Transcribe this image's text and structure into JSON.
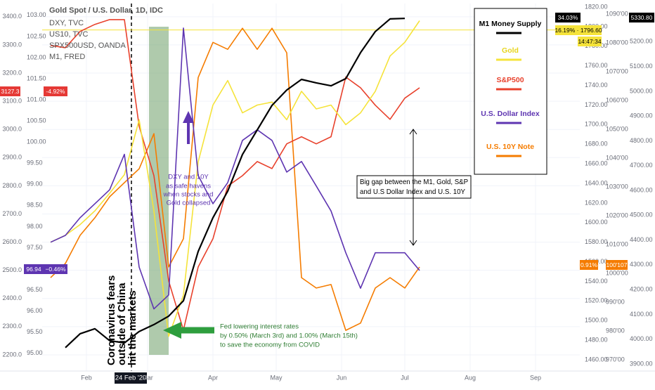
{
  "chart_data": {
    "type": "line",
    "header_legend": [
      "Gold Spot / U.S. Dollar, 1D, IDC",
      "DXY, TVC",
      "US10, TVC",
      "SPX500USD, OANDA",
      "M1, FRED"
    ],
    "x": [
      14,
      21,
      28,
      35,
      42,
      49,
      56,
      63,
      70,
      77,
      84,
      91,
      98,
      105,
      112,
      119,
      126,
      133,
      140,
      147,
      154,
      161,
      168,
      175,
      182,
      189
    ],
    "xlim": [
      10,
      265
    ],
    "xticks": [
      {
        "value": 31,
        "label": "Feb"
      },
      {
        "value": 60,
        "label": "Mar"
      },
      {
        "value": 91,
        "label": "Apr"
      },
      {
        "value": 121,
        "label": "May"
      },
      {
        "value": 152,
        "label": "Jun"
      },
      {
        "value": 182,
        "label": "Jul"
      },
      {
        "value": 213,
        "label": "Aug"
      },
      {
        "value": 244,
        "label": "Sep"
      }
    ],
    "grid": true,
    "axes": {
      "spx": {
        "lim": [
          2150,
          3447
        ],
        "ticks": [
          {
            "value": 2200,
            "label": "2200.0"
          },
          {
            "value": 2300,
            "label": "2300.0"
          },
          {
            "value": 2400,
            "label": "2400.0"
          },
          {
            "value": 2500,
            "label": "2500.0"
          },
          {
            "value": 2600,
            "label": "2600.0"
          },
          {
            "value": 2700,
            "label": "2700.0"
          },
          {
            "value": 2800,
            "label": "2800.0"
          },
          {
            "value": 2900,
            "label": "2900.0"
          },
          {
            "value": 3000,
            "label": "3000.0"
          },
          {
            "value": 3100,
            "label": "3100.0"
          },
          {
            "value": 3200,
            "label": "3200.0"
          },
          {
            "value": 3300,
            "label": "3300.0"
          },
          {
            "value": 3400,
            "label": "3400.0"
          }
        ]
      },
      "dxy": {
        "lim": [
          94.63,
          103.28
        ],
        "ticks": [
          {
            "value": 95,
            "label": "95.00"
          },
          {
            "value": 95.5,
            "label": "95.50"
          },
          {
            "value": 96,
            "label": "96.00"
          },
          {
            "value": 96.5,
            "label": "96.50"
          },
          {
            "value": 97,
            "label": "97.00"
          },
          {
            "value": 97.5,
            "label": "97.50"
          },
          {
            "value": 98,
            "label": "98.00"
          },
          {
            "value": 98.5,
            "label": "98.50"
          },
          {
            "value": 99,
            "label": "99.00"
          },
          {
            "value": 99.5,
            "label": "99.50"
          },
          {
            "value": 100,
            "label": "100.00"
          },
          {
            "value": 100.5,
            "label": "100.50"
          },
          {
            "value": 101,
            "label": "101.00"
          },
          {
            "value": 101.5,
            "label": "101.50"
          },
          {
            "value": 102,
            "label": "102.00"
          },
          {
            "value": 102.5,
            "label": "102.50"
          },
          {
            "value": 103,
            "label": "103.00"
          }
        ]
      },
      "gold": {
        "lim": [
          1450.7,
          1823.6
        ],
        "ticks": [
          {
            "value": 1460,
            "label": "1460.00"
          },
          {
            "value": 1480,
            "label": "1480.00"
          },
          {
            "value": 1500,
            "label": "1500.00"
          },
          {
            "value": 1520,
            "label": "1520.00"
          },
          {
            "value": 1540,
            "label": "1540.00"
          },
          {
            "value": 1560,
            "label": "1560.00"
          },
          {
            "value": 1580,
            "label": "1580.00"
          },
          {
            "value": 1600,
            "label": "1600.00"
          },
          {
            "value": 1620,
            "label": "1620.00"
          },
          {
            "value": 1640,
            "label": "1640.00"
          },
          {
            "value": 1660,
            "label": "1660.00"
          },
          {
            "value": 1680,
            "label": "1680.00"
          },
          {
            "value": 1700,
            "label": "1700.00"
          },
          {
            "value": 1720,
            "label": "1720.00"
          },
          {
            "value": 1740,
            "label": "1740.00"
          },
          {
            "value": 1760,
            "label": "1760.00"
          },
          {
            "value": 1780,
            "label": "1780.00"
          },
          {
            "value": 1800,
            "label": "1800.00"
          },
          {
            "value": 1820,
            "label": "1820.00"
          }
        ]
      },
      "us10": {
        "lim": [
          96.68,
          109.37
        ],
        "ticks": [
          {
            "value": 97,
            "label": "970'00"
          },
          {
            "value": 98,
            "label": "980'00"
          },
          {
            "value": 99,
            "label": "990'00"
          },
          {
            "value": 100,
            "label": "1000'00"
          },
          {
            "value": 101,
            "label": "1010'00"
          },
          {
            "value": 102,
            "label": "1020'00"
          },
          {
            "value": 103,
            "label": "1030'00"
          },
          {
            "value": 104,
            "label": "1040'00"
          },
          {
            "value": 105,
            "label": "1050'00"
          },
          {
            "value": 106,
            "label": "1060'00"
          },
          {
            "value": 107,
            "label": "1070'00"
          },
          {
            "value": 108,
            "label": "1080'00"
          },
          {
            "value": 109,
            "label": "1090'00"
          }
        ]
      },
      "m1": {
        "lim": [
          3880,
          5354
        ],
        "ticks": [
          {
            "value": 3900,
            "label": "3900.00"
          },
          {
            "value": 4000,
            "label": "4000.00"
          },
          {
            "value": 4100,
            "label": "4100.00"
          },
          {
            "value": 4200,
            "label": "4200.00"
          },
          {
            "value": 4300,
            "label": "4300.00"
          },
          {
            "value": 4400,
            "label": "4400.00"
          },
          {
            "value": 4500,
            "label": "4500.00"
          },
          {
            "value": 4600,
            "label": "4600.00"
          },
          {
            "value": 4700,
            "label": "4700.00"
          },
          {
            "value": 4800,
            "label": "4800.00"
          },
          {
            "value": 4900,
            "label": "4900.00"
          },
          {
            "value": 5000,
            "label": "5000.00"
          },
          {
            "value": 5100,
            "label": "5100.00"
          },
          {
            "value": 5200,
            "label": "5200.00"
          },
          {
            "value": 5300,
            "label": "5300.00"
          }
        ]
      }
    },
    "series": [
      {
        "name": "U.S. 10Y Note",
        "color": "#f57c00",
        "axis": "us10",
        "values": [
          99.85,
          100.34,
          101.32,
          101.93,
          102.66,
          103.15,
          103.63,
          104.85,
          100.22,
          101.2,
          106.8,
          108.02,
          107.78,
          108.51,
          107.78,
          108.51,
          107.66,
          99.85,
          99.49,
          99.61,
          98.02,
          98.27,
          99.49,
          99.85,
          99.49,
          100.22
        ]
      },
      {
        "name": "S&P500",
        "color": "#e8412c",
        "axis": "spx",
        "values": [
          3298,
          3290,
          3348,
          3373,
          3390,
          3390,
          3011,
          2836,
          2462,
          2288,
          2512,
          2612,
          2799,
          2836,
          2886,
          2861,
          2949,
          2974,
          2949,
          2974,
          3186,
          3148,
          3086,
          3036,
          3111,
          3148
        ]
      },
      {
        "name": "Gold",
        "color": "#f5e33a",
        "axis": "gold",
        "values": [
          1580,
          1587,
          1598,
          1612,
          1630,
          1649,
          1705,
          1612,
          1484,
          1526,
          1662,
          1720,
          1745,
          1712,
          1720,
          1723,
          1705,
          1734,
          1716,
          1720,
          1700,
          1712,
          1734,
          1770,
          1784,
          1806
        ]
      },
      {
        "name": "U.S. Dollar Index",
        "color": "#5e35b1",
        "axis": "dxy",
        "values": [
          97.63,
          97.79,
          98.21,
          98.54,
          98.87,
          99.71,
          97.04,
          96.05,
          96.38,
          102.7,
          99.21,
          98.54,
          99.04,
          100.04,
          100.29,
          100.04,
          99.29,
          99.54,
          98.96,
          98.37,
          97.38,
          96.54,
          97.38,
          97.38,
          97.38,
          96.96
        ]
      },
      {
        "name": "M1 Money Supply",
        "color": "#000000",
        "axis": "m1",
        "values": [
          null,
          3966,
          4022,
          4042,
          3994,
          3985,
          4031,
          4059,
          4093,
          4155,
          4354,
          4490,
          4597,
          4745,
          4844,
          4943,
          5005,
          5048,
          5034,
          5022,
          5051,
          5156,
          5241,
          5292,
          5294,
          null
        ]
      }
    ],
    "gold_price_line": 1796.6,
    "price_tags": [
      {
        "text": "3127.3",
        "color": "#e53935"
      },
      {
        "text": "-4.92%",
        "color": "#e53935"
      },
      {
        "text": "96.94",
        "color": "#5e35b1"
      },
      {
        "text": "−0.46%",
        "color": "#5e35b1"
      },
      {
        "text": "0.91%",
        "color": "#f57c00"
      },
      {
        "text": "100'107",
        "color": "#f57c00"
      },
      {
        "text": "34.03%",
        "color": "#000000"
      },
      {
        "text": "5330.80",
        "color": "#000000"
      },
      {
        "text": "16.19% · 1796.60",
        "color": "#f5e33a"
      },
      {
        "text": "14:47:34",
        "color": "#f5e33a"
      }
    ],
    "crosshair_label": "24 Feb '20",
    "annotations": {
      "covid": [
        "Coronavirus fears",
        "outside of China",
        "hit the markets"
      ],
      "safe_haven": [
        "DXY and 10Y",
        "as safe havens",
        "when stocks and",
        "Gold collapsed"
      ],
      "fed": [
        "Fed lowering interest rates",
        "by 0.50% (March 3rd) and 1.00% (March 15th)",
        "to save the economy from COVID"
      ],
      "gap": [
        "Big gap between the M1, Gold, S&P",
        "and U.S Dollar Index and U.S. 10Y"
      ]
    }
  }
}
